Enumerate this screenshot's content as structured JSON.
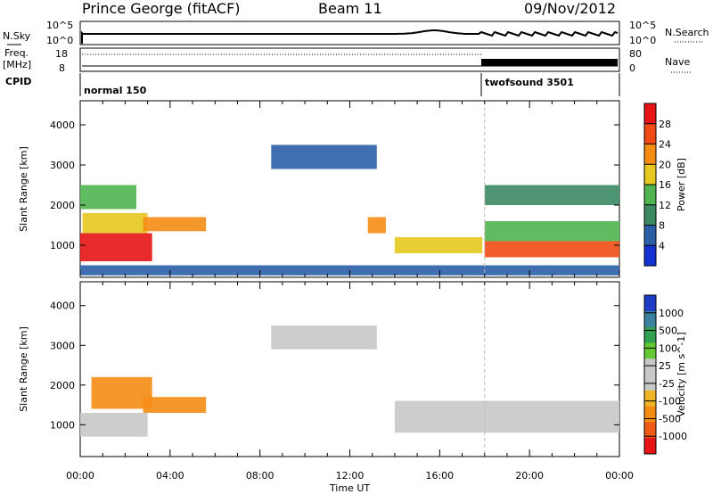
{
  "header": {
    "station": "Prince George (fitACF)",
    "beam": "Beam 11",
    "date": "09/Nov/2012"
  },
  "noise_panel": {
    "left_label": "N.Sky",
    "right_label": "N.Search",
    "left_ticks": [
      "10^5",
      "10^0"
    ],
    "right_ticks": [
      "10^5",
      "10^0"
    ]
  },
  "freq_panel": {
    "left_label_1": "Freq.",
    "left_label_2": "[MHz]",
    "right_label": "Nave",
    "left_ticks": [
      "18",
      "8"
    ],
    "right_ticks": [
      "80",
      "0"
    ]
  },
  "cpid_panel": {
    "label": "CPID",
    "programs": [
      "normal 150",
      "twofsound 3501"
    ]
  },
  "colors": {
    "power_scale": [
      "#1432d2",
      "#2a5fa8",
      "#3c8a64",
      "#50b450",
      "#e6c81e",
      "#f58c14",
      "#f04b14",
      "#e61414"
    ],
    "velocity_scale": [
      "#e61414",
      "#f05a14",
      "#f58c14",
      "#f0b428",
      "#c8c8c8",
      "#c8c8c8",
      "#64c832",
      "#32a050",
      "#3c82a0",
      "#1e3cc8"
    ]
  },
  "chart_data": [
    {
      "type": "heatmap",
      "title": "Power",
      "ylabel": "Slant Range [km]",
      "yticks": [
        "1000",
        "2000",
        "3000",
        "4000"
      ],
      "ylim": [
        200,
        4600
      ],
      "xlim_hours": [
        0,
        24
      ],
      "colorbar": {
        "label": "Power [dB]",
        "ticks": [
          "4",
          "8",
          "12",
          "16",
          "20",
          "24",
          "28"
        ],
        "range": [
          0,
          32
        ]
      },
      "regions": [
        {
          "t0": 0.0,
          "t1": 3.2,
          "r0": 600,
          "r1": 1300,
          "level": 28
        },
        {
          "t0": 0.1,
          "t1": 3.0,
          "r0": 1300,
          "r1": 1800,
          "level": 18
        },
        {
          "t0": 0.0,
          "t1": 2.5,
          "r0": 1900,
          "r1": 2500,
          "level": 14
        },
        {
          "t0": 2.8,
          "t1": 5.6,
          "r0": 1350,
          "r1": 1700,
          "level": 20
        },
        {
          "t0": 12.8,
          "t1": 13.6,
          "r0": 1300,
          "r1": 1700,
          "level": 20
        },
        {
          "t0": 14.0,
          "t1": 17.9,
          "r0": 800,
          "r1": 1200,
          "level": 18
        },
        {
          "t0": 18.0,
          "t1": 24.0,
          "r0": 700,
          "r1": 1100,
          "level": 26
        },
        {
          "t0": 18.0,
          "t1": 24.0,
          "r0": 1100,
          "r1": 1600,
          "level": 14
        },
        {
          "t0": 18.0,
          "t1": 24.0,
          "r0": 2000,
          "r1": 2500,
          "level": 10
        },
        {
          "t0": 8.5,
          "t1": 13.2,
          "r0": 2900,
          "r1": 3500,
          "level": 6
        },
        {
          "t0": 0.0,
          "t1": 24.0,
          "r0": 250,
          "r1": 500,
          "level": 6
        }
      ]
    },
    {
      "type": "heatmap",
      "title": "Velocity",
      "ylabel": "Slant Range [km]",
      "xlabel": "Time UT",
      "yticks": [
        "1000",
        "2000",
        "3000",
        "4000"
      ],
      "ylim": [
        200,
        4600
      ],
      "xlim_hours": [
        0,
        24
      ],
      "xticks": [
        "00:00",
        "04:00",
        "08:00",
        "12:00",
        "16:00",
        "20:00",
        "00:00"
      ],
      "colorbar": {
        "label": "Velocity [m s^-1]",
        "ticks": [
          "1000",
          "500",
          "100",
          "25",
          "-25",
          "-100",
          "-500",
          "-1000"
        ]
      },
      "regions": [
        {
          "t0": 0.0,
          "t1": 3.0,
          "r0": 700,
          "r1": 1300,
          "level": 0
        },
        {
          "t0": 0.5,
          "t1": 3.2,
          "r0": 1400,
          "r1": 2200,
          "level": -300
        },
        {
          "t0": 2.8,
          "t1": 5.6,
          "r0": 1300,
          "r1": 1700,
          "level": -300
        },
        {
          "t0": 14.0,
          "t1": 24.0,
          "r0": 800,
          "r1": 1600,
          "level": 0
        },
        {
          "t0": 8.5,
          "t1": 13.2,
          "r0": 2900,
          "r1": 3500,
          "level": 0
        }
      ]
    }
  ],
  "cpid_change_hours": 18.0
}
